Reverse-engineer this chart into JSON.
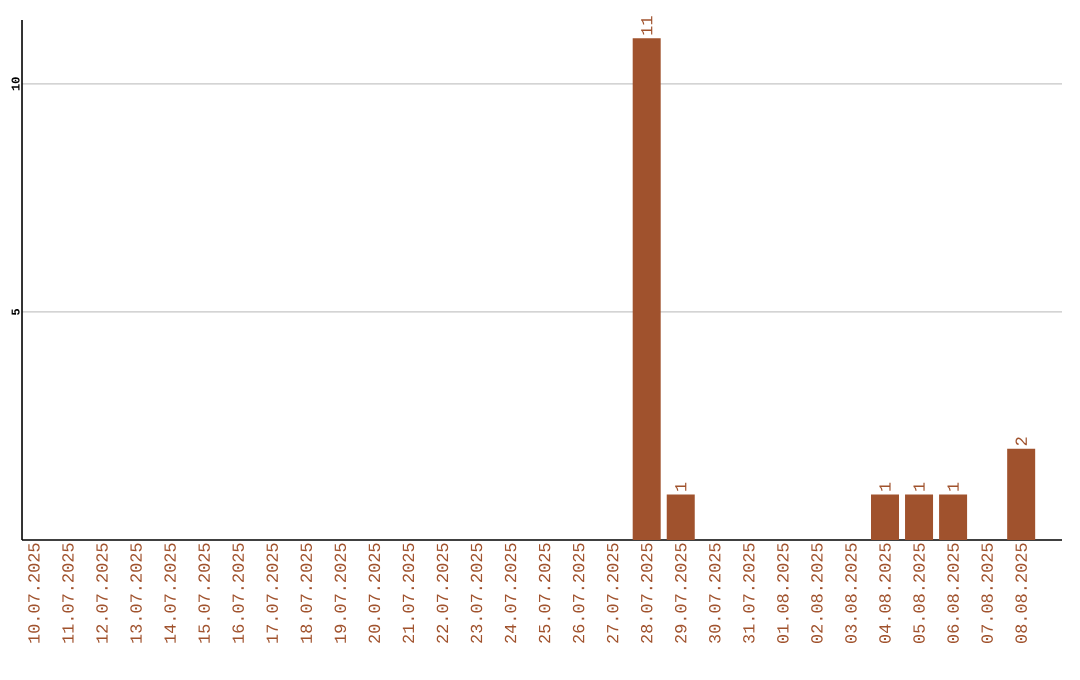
{
  "chart_data": {
    "type": "bar",
    "color": "#a0522d",
    "categories": [
      "10.07.2025",
      "11.07.2025",
      "12.07.2025",
      "13.07.2025",
      "14.07.2025",
      "15.07.2025",
      "16.07.2025",
      "17.07.2025",
      "18.07.2025",
      "19.07.2025",
      "20.07.2025",
      "21.07.2025",
      "22.07.2025",
      "23.07.2025",
      "24.07.2025",
      "25.07.2025",
      "26.07.2025",
      "27.07.2025",
      "28.07.2025",
      "29.07.2025",
      "30.07.2025",
      "31.07.2025",
      "01.08.2025",
      "02.08.2025",
      "03.08.2025",
      "04.08.2025",
      "05.08.2025",
      "06.08.2025",
      "07.08.2025",
      "08.08.2025"
    ],
    "values": [
      0,
      0,
      0,
      0,
      0,
      0,
      0,
      0,
      0,
      0,
      0,
      0,
      0,
      0,
      0,
      0,
      0,
      0,
      11,
      1,
      0,
      0,
      0,
      0,
      0,
      1,
      1,
      1,
      0,
      2
    ],
    "value_labels": [
      null,
      null,
      null,
      null,
      null,
      null,
      null,
      null,
      null,
      null,
      null,
      null,
      null,
      null,
      null,
      null,
      null,
      null,
      "11",
      "1",
      null,
      null,
      null,
      null,
      null,
      "1",
      "1",
      "1",
      null,
      "2"
    ],
    "ylim": [
      0,
      11.4
    ],
    "yticks": [
      5,
      10
    ],
    "grid": "y"
  }
}
